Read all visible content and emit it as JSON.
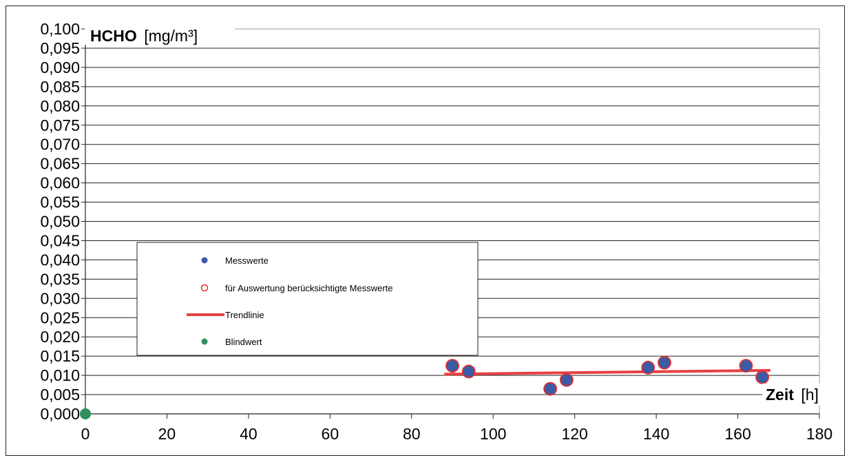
{
  "chart_data": {
    "type": "scatter",
    "ylabel_bold": "HCHO",
    "ylabel_unit": "[mg/m³]",
    "xlabel_bold": "Zeit",
    "xlabel_unit": "[h]",
    "xlim": [
      0,
      180
    ],
    "ylim": [
      0,
      0.1
    ],
    "x_ticks": [
      "0",
      "20",
      "40",
      "60",
      "80",
      "100",
      "120",
      "140",
      "160",
      "180"
    ],
    "y_ticks": [
      "0,000",
      "0,005",
      "0,010",
      "0,015",
      "0,020",
      "0,025",
      "0,030",
      "0,035",
      "0,040",
      "0,045",
      "0,050",
      "0,055",
      "0,060",
      "0,065",
      "0,070",
      "0,075",
      "0,080",
      "0,085",
      "0,090",
      "0,095",
      "0,100"
    ],
    "grid": "horizontal",
    "legend_position": "lower-left",
    "series": [
      {
        "name": "Messwerte",
        "color": "#3b5ba5",
        "points": [
          {
            "x": 90,
            "y": 0.0125
          },
          {
            "x": 94,
            "y": 0.011
          },
          {
            "x": 114,
            "y": 0.0065
          },
          {
            "x": 118,
            "y": 0.0088
          },
          {
            "x": 138,
            "y": 0.012
          },
          {
            "x": 142,
            "y": 0.0133
          },
          {
            "x": 162,
            "y": 0.0125
          },
          {
            "x": 166,
            "y": 0.0095
          }
        ]
      },
      {
        "name": "für Auswertung berücksichtigte Messwerte",
        "color": "#e03030",
        "points": [
          {
            "x": 90,
            "y": 0.0125
          },
          {
            "x": 94,
            "y": 0.011
          },
          {
            "x": 114,
            "y": 0.0065
          },
          {
            "x": 118,
            "y": 0.0088
          },
          {
            "x": 138,
            "y": 0.012
          },
          {
            "x": 142,
            "y": 0.0133
          },
          {
            "x": 162,
            "y": 0.0125
          },
          {
            "x": 166,
            "y": 0.0095
          }
        ]
      },
      {
        "name": "Trendlinie",
        "color": "#e84040",
        "line": [
          {
            "x": 88,
            "y": 0.0103
          },
          {
            "x": 168,
            "y": 0.0113
          }
        ]
      },
      {
        "name": "Blindwert",
        "color": "#2f8f5f",
        "points": [
          {
            "x": 0,
            "y": 0.0
          }
        ]
      }
    ]
  }
}
